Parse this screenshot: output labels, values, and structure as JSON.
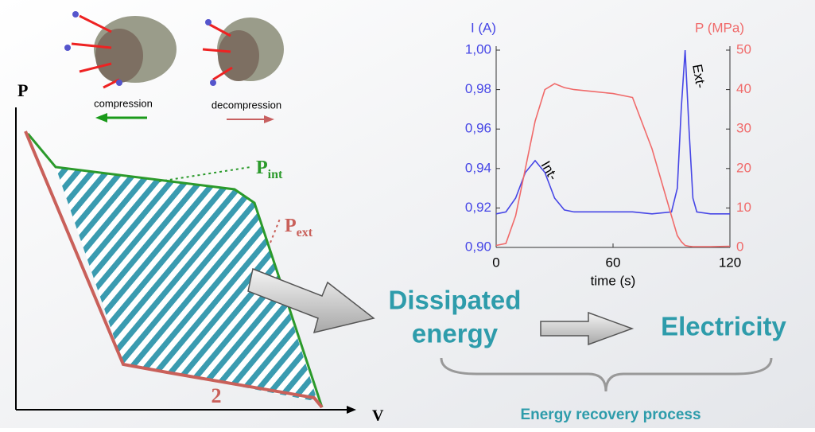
{
  "pv_diagram": {
    "y_axis_label": "P",
    "x_axis_label": "V",
    "compression": "compression",
    "decompression": "decompression",
    "p_int": {
      "base": "P",
      "sub": "int"
    },
    "p_ext": {
      "base": "P",
      "sub": "ext"
    },
    "cycle_label": "2"
  },
  "flow": {
    "dissipated": [
      "Dissipated",
      "energy"
    ],
    "electricity": "Electricity",
    "process": "Energy recovery process"
  },
  "chart_data": {
    "type": "line",
    "y_axis_label": "I (A)",
    "y2_axis_label": "P (MPa)",
    "x_axis_label": "time (s)",
    "annotations": [
      "Int-",
      "Ext-"
    ],
    "x": [
      0,
      5,
      10,
      15,
      20,
      25,
      30,
      35,
      40,
      50,
      60,
      70,
      80,
      90,
      93,
      95,
      97,
      99,
      101,
      103,
      110,
      120
    ],
    "series": [
      {
        "name": "I",
        "color": "#4646e6",
        "axis": "y",
        "values": [
          0.917,
          0.918,
          0.925,
          0.938,
          0.944,
          0.938,
          0.925,
          0.919,
          0.918,
          0.918,
          0.918,
          0.918,
          0.917,
          0.918,
          0.93,
          0.97,
          1.0,
          0.96,
          0.925,
          0.918,
          0.917,
          0.917
        ]
      },
      {
        "name": "P",
        "color": "#f06a6a",
        "axis": "y2",
        "values": [
          0.5,
          1,
          8,
          20,
          32,
          40,
          41.5,
          40.5,
          40,
          39.5,
          39,
          38,
          25,
          8,
          3,
          1.5,
          0.5,
          0.3,
          0.2,
          0.2,
          0.2,
          0.3
        ]
      }
    ],
    "xlim": [
      0,
      120
    ],
    "xticks": [
      0,
      60,
      120
    ],
    "ylim": [
      0.9,
      1.0
    ],
    "yticks": [
      {
        "value": 0.9,
        "label": "0,90"
      },
      {
        "value": 0.92,
        "label": "0,92"
      },
      {
        "value": 0.94,
        "label": "0,94"
      },
      {
        "value": 0.96,
        "label": "0,96"
      },
      {
        "value": 0.98,
        "label": "0,98"
      },
      {
        "value": 1.0,
        "label": "1,00"
      }
    ],
    "y2lim": [
      0,
      50
    ],
    "y2ticks": [
      0,
      10,
      20,
      30,
      40,
      50
    ]
  }
}
